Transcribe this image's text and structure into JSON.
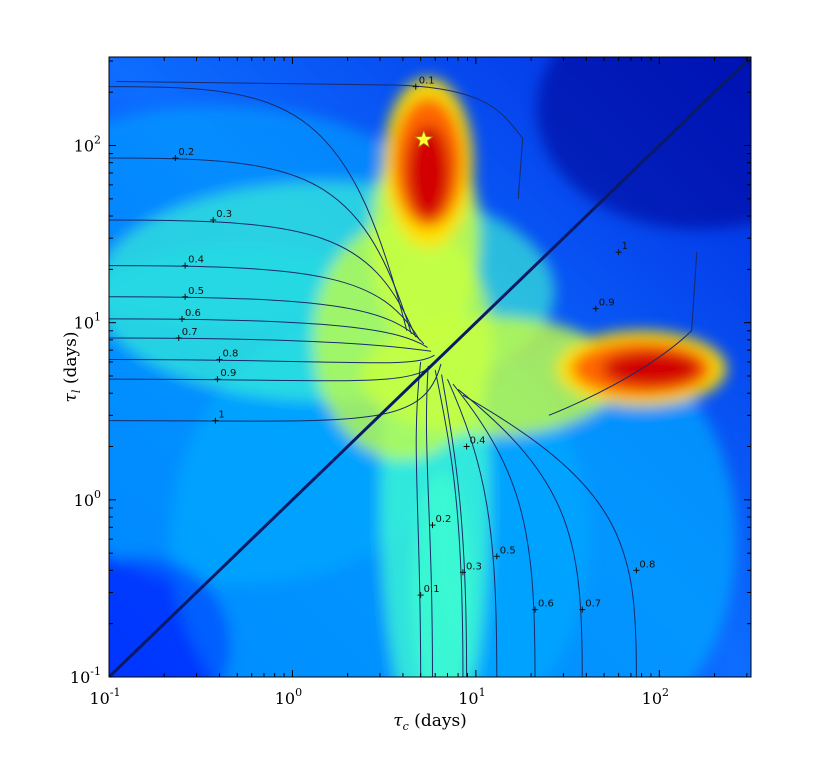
{
  "chart_data": {
    "type": "heatmap",
    "title": "",
    "xlabel": "τc (days)",
    "ylabel": "τl (days)",
    "x_scale": "log",
    "y_scale": "log",
    "xlim": [
      0.1,
      316
    ],
    "ylim": [
      0.1,
      316
    ],
    "x_ticks": [
      {
        "base": "10",
        "exp": "-1"
      },
      {
        "base": "10",
        "exp": "0"
      },
      {
        "base": "10",
        "exp": "1"
      },
      {
        "base": "10",
        "exp": "2"
      }
    ],
    "y_ticks": [
      {
        "base": "10",
        "exp": "-1"
      },
      {
        "base": "10",
        "exp": "0"
      },
      {
        "base": "10",
        "exp": "1"
      },
      {
        "base": "10",
        "exp": "2"
      }
    ],
    "colormap": [
      "#00008f",
      "#0030ff",
      "#00a8ff",
      "#40ffd0",
      "#c8ff40",
      "#ffe000",
      "#ff6000",
      "#d00000"
    ],
    "peaks": [
      {
        "x": 5.5,
        "y": 80,
        "level": 1.0
      },
      {
        "x": 80,
        "y": 5.5,
        "level": 1.0
      }
    ],
    "marker": {
      "type": "star",
      "x": 5.2,
      "y": 108,
      "color": "#ffff33"
    },
    "contours_upper": [
      {
        "label": "0.1",
        "label_at": [
          4.7,
          215
        ]
      },
      {
        "label": "0.2",
        "label_at": [
          0.23,
          85
        ]
      },
      {
        "label": "0.3",
        "label_at": [
          0.37,
          38
        ]
      },
      {
        "label": "0.4",
        "label_at": [
          0.26,
          21
        ]
      },
      {
        "label": "0.5",
        "label_at": [
          0.26,
          14
        ]
      },
      {
        "label": "0.6",
        "label_at": [
          0.25,
          10.5
        ]
      },
      {
        "label": "0.7",
        "label_at": [
          0.24,
          8.2
        ]
      },
      {
        "label": "0.8",
        "label_at": [
          0.4,
          6.2
        ]
      },
      {
        "label": "0.9",
        "label_at": [
          0.39,
          4.8
        ]
      },
      {
        "label": "1",
        "label_at": [
          0.38,
          2.8
        ]
      },
      {
        "label": "0.9",
        "label_at": [
          45,
          12
        ]
      },
      {
        "label": "1",
        "label_at": [
          60,
          25
        ]
      }
    ],
    "contours_lower": [
      {
        "label": "0.1",
        "label_at": [
          5.0,
          0.29
        ]
      },
      {
        "label": "0.2",
        "label_at": [
          5.8,
          0.72
        ]
      },
      {
        "label": "0.3",
        "label_at": [
          8.5,
          0.39
        ]
      },
      {
        "label": "0.4",
        "label_at": [
          8.9,
          2.0
        ]
      },
      {
        "label": "0.5",
        "label_at": [
          13,
          0.48
        ]
      },
      {
        "label": "0.6",
        "label_at": [
          21,
          0.24
        ]
      },
      {
        "label": "0.7",
        "label_at": [
          38,
          0.24
        ]
      },
      {
        "label": "0.8",
        "label_at": [
          75,
          0.4
        ]
      }
    ]
  }
}
